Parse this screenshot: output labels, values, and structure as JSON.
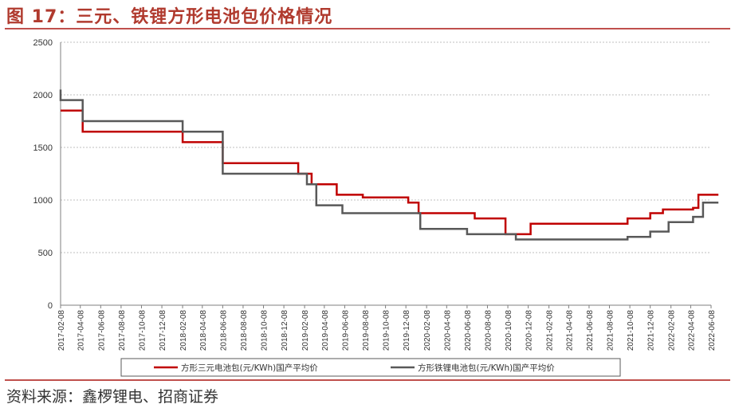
{
  "title": "图 17：三元、铁锂方形电池包价格情况",
  "source": "资料来源：鑫椤锂电、招商证券",
  "chart_data": {
    "type": "line",
    "x_ticks": [
      "2017-02-08",
      "2017-04-08",
      "2017-06-08",
      "2017-08-08",
      "2017-10-08",
      "2017-12-08",
      "2018-02-08",
      "2018-04-08",
      "2018-06-08",
      "2018-08-08",
      "2018-10-08",
      "2018-12-08",
      "2019-02-08",
      "2019-04-08",
      "2019-06-08",
      "2019-08-08",
      "2019-10-08",
      "2019-12-08",
      "2020-02-08",
      "2020-04-08",
      "2020-06-08",
      "2020-08-08",
      "2020-10-08",
      "2020-12-08",
      "2021-02-08",
      "2021-04-08",
      "2021-06-08",
      "2021-08-08",
      "2021-10-08",
      "2021-12-08",
      "2022-02-08",
      "2022-04-08",
      "2022-06-08"
    ],
    "ylim": [
      0,
      2500
    ],
    "y_ticks": [
      0,
      500,
      1000,
      1500,
      2000,
      2500
    ],
    "grid": "horizontal-dashed",
    "legend_position": "bottom",
    "series": [
      {
        "name": "方形三元电池包(元/KWh)国产平均价",
        "color": "#c00000",
        "points": [
          [
            "2017-02-08",
            1850
          ],
          [
            "2017-04-15",
            1850
          ],
          [
            "2017-04-15",
            1650
          ],
          [
            "2018-02-08",
            1650
          ],
          [
            "2018-02-08",
            1550
          ],
          [
            "2018-06-08",
            1550
          ],
          [
            "2018-06-08",
            1350
          ],
          [
            "2019-01-20",
            1350
          ],
          [
            "2019-01-20",
            1250
          ],
          [
            "2019-03-01",
            1250
          ],
          [
            "2019-03-01",
            1150
          ],
          [
            "2019-05-15",
            1150
          ],
          [
            "2019-05-15",
            1050
          ],
          [
            "2019-08-01",
            1050
          ],
          [
            "2019-08-01",
            1025
          ],
          [
            "2019-12-15",
            1025
          ],
          [
            "2019-12-15",
            975
          ],
          [
            "2020-01-15",
            975
          ],
          [
            "2020-01-15",
            875
          ],
          [
            "2020-07-01",
            875
          ],
          [
            "2020-07-01",
            825
          ],
          [
            "2020-10-01",
            825
          ],
          [
            "2020-10-01",
            675
          ],
          [
            "2020-12-15",
            675
          ],
          [
            "2020-12-15",
            775
          ],
          [
            "2021-10-01",
            775
          ],
          [
            "2021-10-01",
            825
          ],
          [
            "2021-12-08",
            825
          ],
          [
            "2021-12-08",
            875
          ],
          [
            "2022-01-15",
            875
          ],
          [
            "2022-01-15",
            910
          ],
          [
            "2022-04-15",
            910
          ],
          [
            "2022-04-15",
            925
          ],
          [
            "2022-05-01",
            925
          ],
          [
            "2022-05-01",
            1050
          ],
          [
            "2022-06-30",
            1050
          ]
        ]
      },
      {
        "name": "方形铁锂电池包(元/KWh)国产平均价",
        "color": "#595959",
        "points": [
          [
            "2017-02-08",
            2050
          ],
          [
            "2017-02-08",
            1950
          ],
          [
            "2017-04-15",
            1950
          ],
          [
            "2017-04-15",
            1750
          ],
          [
            "2018-02-08",
            1750
          ],
          [
            "2018-02-08",
            1650
          ],
          [
            "2018-06-08",
            1650
          ],
          [
            "2018-06-08",
            1250
          ],
          [
            "2019-02-15",
            1250
          ],
          [
            "2019-02-15",
            1150
          ],
          [
            "2019-03-15",
            1150
          ],
          [
            "2019-03-15",
            950
          ],
          [
            "2019-06-01",
            950
          ],
          [
            "2019-06-01",
            875
          ],
          [
            "2020-01-20",
            875
          ],
          [
            "2020-01-20",
            725
          ],
          [
            "2020-06-08",
            725
          ],
          [
            "2020-06-08",
            675
          ],
          [
            "2020-11-01",
            675
          ],
          [
            "2020-11-01",
            625
          ],
          [
            "2021-10-01",
            625
          ],
          [
            "2021-10-01",
            650
          ],
          [
            "2021-12-08",
            650
          ],
          [
            "2021-12-08",
            700
          ],
          [
            "2022-02-01",
            700
          ],
          [
            "2022-02-01",
            790
          ],
          [
            "2022-04-15",
            790
          ],
          [
            "2022-04-15",
            840
          ],
          [
            "2022-05-15",
            840
          ],
          [
            "2022-05-15",
            975
          ],
          [
            "2022-06-30",
            975
          ]
        ]
      }
    ]
  }
}
